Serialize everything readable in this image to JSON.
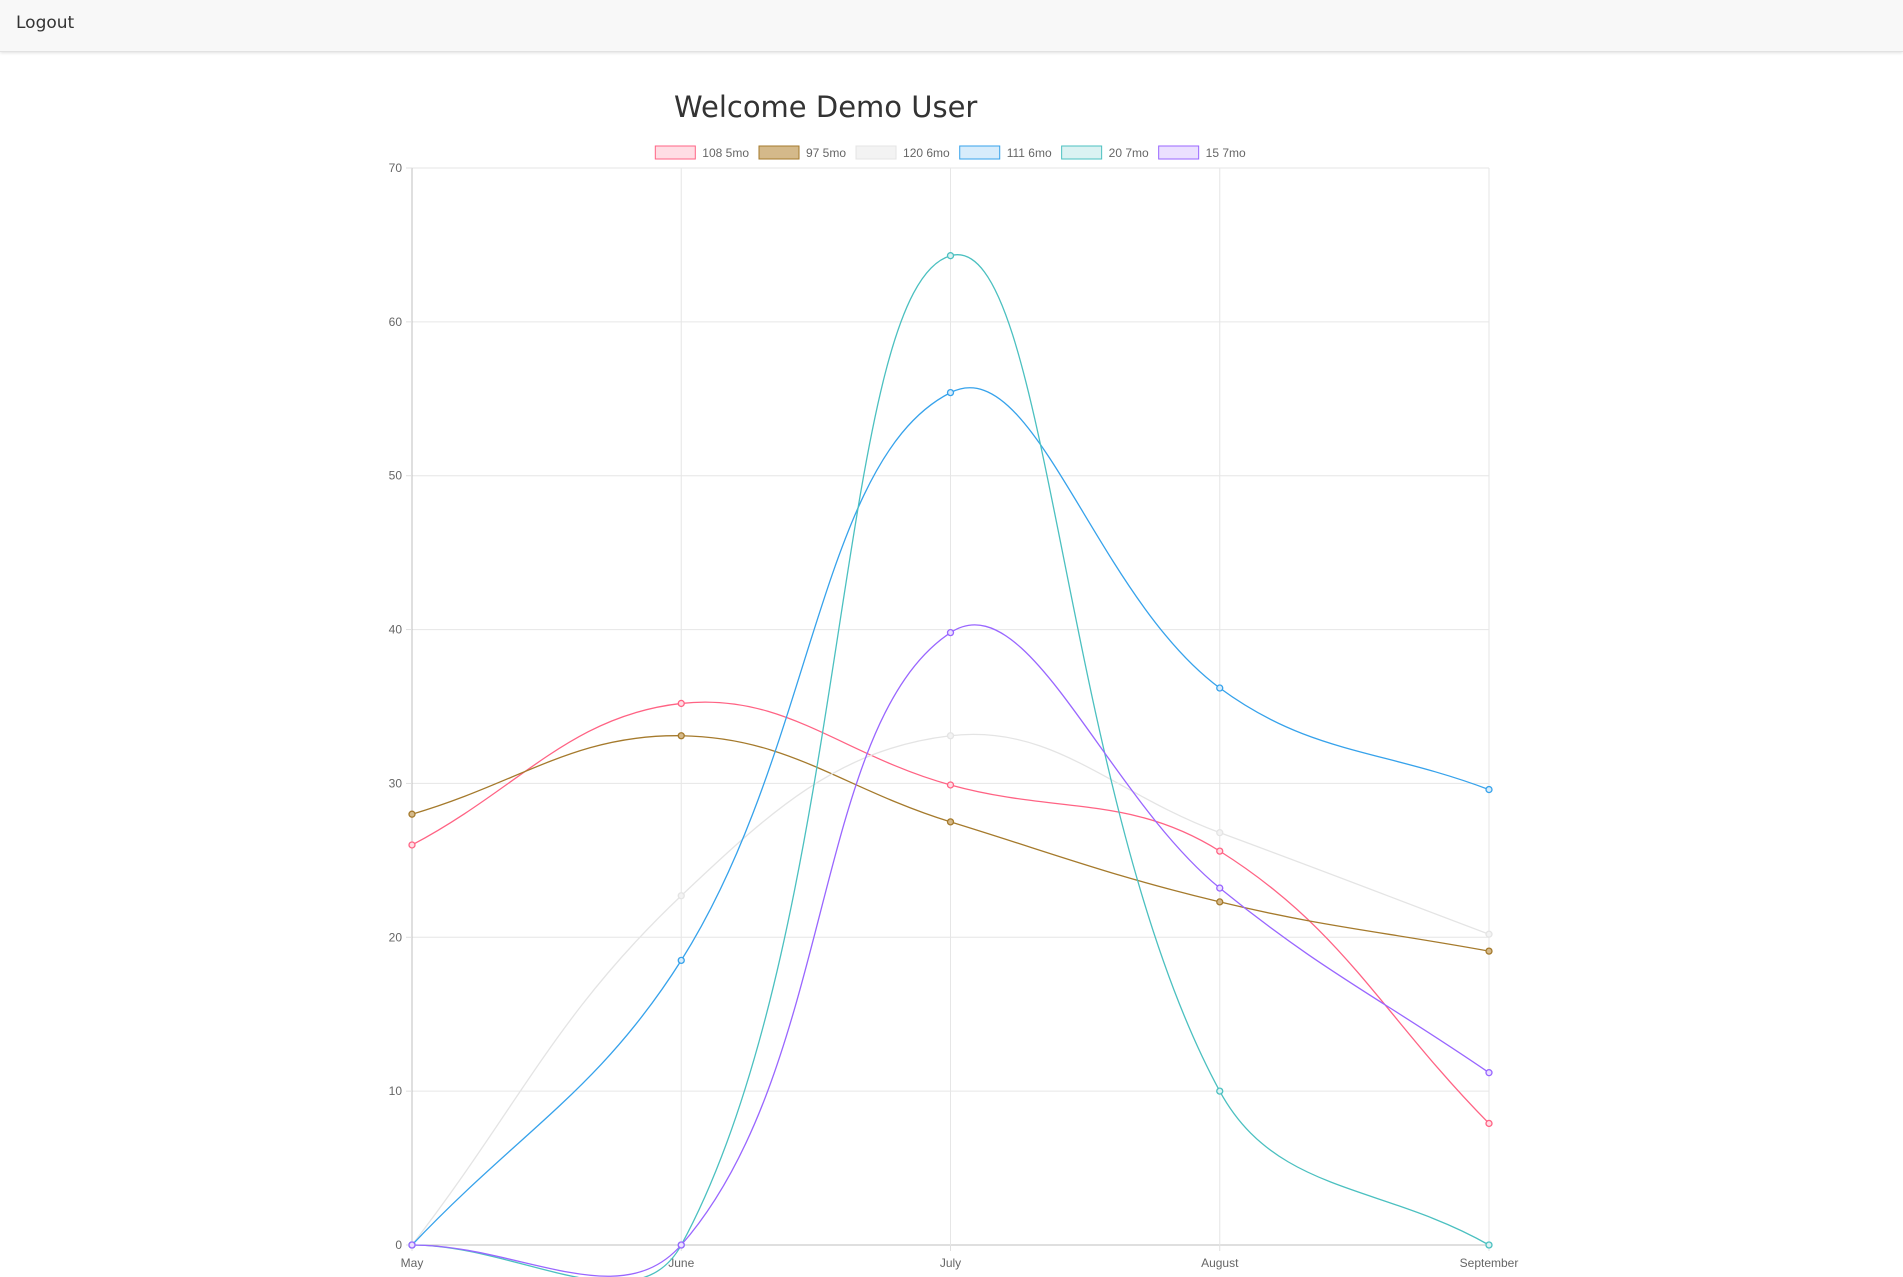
{
  "nav": {
    "logout_label": "Logout"
  },
  "page": {
    "title": "Welcome Demo User"
  },
  "chart_data": {
    "type": "line",
    "title": "",
    "xlabel": "",
    "ylabel": "",
    "categories": [
      "May",
      "June",
      "July",
      "August",
      "September"
    ],
    "ylim": [
      0,
      70
    ],
    "yticks": [
      0,
      10,
      20,
      30,
      40,
      50,
      60,
      70
    ],
    "grid": true,
    "legend_position": "top",
    "series": [
      {
        "name": "108 5mo",
        "color": "#ff6384",
        "fill": "#ffdde4",
        "values": [
          26,
          35.2,
          29.9,
          25.6,
          7.9
        ]
      },
      {
        "name": "97 5mo",
        "color": "#a57a2c",
        "fill": "#d4b98a",
        "values": [
          28,
          33.1,
          27.5,
          22.3,
          19.1
        ]
      },
      {
        "name": "120 6mo",
        "color": "#e4e4e4",
        "fill": "#f3f3f3",
        "values": [
          0,
          22.7,
          33.1,
          26.8,
          20.2
        ]
      },
      {
        "name": "111 6mo",
        "color": "#36a2eb",
        "fill": "#d7ecfb",
        "values": [
          0,
          18.5,
          55.4,
          36.2,
          29.6
        ]
      },
      {
        "name": "20 7mo",
        "color": "#4bc0c0",
        "fill": "#dbf2f2",
        "values": [
          0,
          0,
          64.3,
          10,
          0
        ]
      },
      {
        "name": "15 7mo",
        "color": "#9966ff",
        "fill": "#ebe0ff",
        "values": [
          0,
          0,
          39.8,
          23.2,
          11.2
        ]
      }
    ]
  }
}
